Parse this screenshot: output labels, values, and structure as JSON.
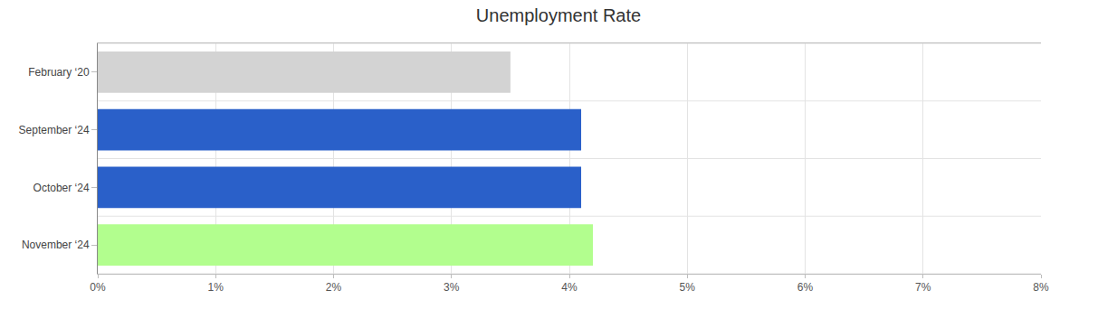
{
  "chart_data": {
    "type": "bar",
    "orientation": "horizontal",
    "title": "Unemployment Rate",
    "categories": [
      "February ‘20",
      "September ‘24",
      "October ‘24",
      "November ‘24"
    ],
    "values": [
      3.5,
      4.1,
      4.1,
      4.2
    ],
    "colors": [
      "#d3d3d3",
      "#2a60c9",
      "#2a60c9",
      "#b2fe8e"
    ],
    "xlim": [
      0,
      8
    ],
    "xticks": [
      {
        "value": 0,
        "label": "0%"
      },
      {
        "value": 1,
        "label": "1%"
      },
      {
        "value": 2,
        "label": "2%"
      },
      {
        "value": 3,
        "label": "3%"
      },
      {
        "value": 4,
        "label": "4%"
      },
      {
        "value": 5,
        "label": "5%"
      },
      {
        "value": 6,
        "label": "6%"
      },
      {
        "value": 7,
        "label": "7%"
      },
      {
        "value": 8,
        "label": "8%"
      }
    ],
    "grid": true
  }
}
